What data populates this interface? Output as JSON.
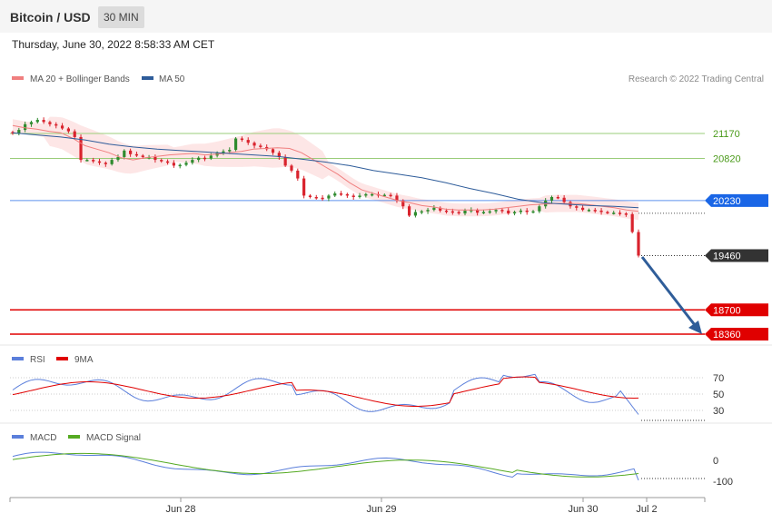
{
  "header": {
    "title": "Bitcoin / USD",
    "timeframe": "30 MIN"
  },
  "datetime": "Thursday, June 30, 2022 8:58:33 AM CET",
  "legend": {
    "ma20": "MA 20 + Bollinger Bands",
    "ma50": "MA 50",
    "credit": "Research © 2022 Trading Central",
    "rsi": "RSI",
    "rsi_ma": "9MA",
    "macd": "MACD",
    "macd_signal": "MACD Signal"
  },
  "colors": {
    "up": "#2e8b2e",
    "down": "#d9232d",
    "bb_fill": "#fde3e3",
    "ma20": "#f07f7f",
    "ma50": "#2e5c9a",
    "resistance": "#9acd7a",
    "pivot": "#1a66e6",
    "support": "#e00000",
    "arrow": "#2f5d99",
    "rsi": "#5b7fdb",
    "macd_signal": "#55aa22"
  },
  "chart_data": [
    {
      "type": "candlestick",
      "title": "Bitcoin / USD",
      "timeframe": "30 MIN",
      "x_ticks": [
        "Jun 28",
        "Jun 29",
        "Jun 30",
        "Jul 2"
      ],
      "ylim": [
        18320,
        21500
      ],
      "levels": [
        {
          "value": 21170,
          "label": "21170",
          "kind": "resistance"
        },
        {
          "value": 20820,
          "label": "20820",
          "kind": "resistance"
        },
        {
          "value": 20230,
          "label": "20230",
          "kind": "pivot"
        },
        {
          "value": 19460,
          "label": "19460",
          "kind": "last"
        },
        {
          "value": 18700,
          "label": "18700",
          "kind": "support"
        },
        {
          "value": 18360,
          "label": "18360",
          "kind": "support"
        }
      ],
      "close": [
        21170,
        21220,
        21300,
        21330,
        21360,
        21330,
        21300,
        21280,
        21240,
        21200,
        21120,
        20800,
        20800,
        20780,
        20760,
        20740,
        20800,
        20840,
        20930,
        20880,
        20860,
        20840,
        20840,
        20800,
        20780,
        20760,
        20720,
        20730,
        20760,
        20800,
        20830,
        20820,
        20860,
        20900,
        20920,
        20940,
        21100,
        21080,
        21040,
        21000,
        20980,
        20950,
        20900,
        20840,
        20720,
        20650,
        20540,
        20300,
        20280,
        20270,
        20260,
        20300,
        20330,
        20320,
        20300,
        20280,
        20300,
        20320,
        20320,
        20310,
        20310,
        20300,
        20230,
        20150,
        20020,
        20070,
        20080,
        20100,
        20130,
        20090,
        20080,
        20070,
        20050,
        20090,
        20100,
        20060,
        20070,
        20080,
        20100,
        20090,
        20050,
        20070,
        20090,
        20070,
        20080,
        20150,
        20230,
        20280,
        20270,
        20210,
        20150,
        20130,
        20100,
        20100,
        20090,
        20070,
        20060,
        20060,
        20050,
        20040,
        19790,
        19460
      ],
      "ma20": [
        21280,
        21250,
        21230,
        21200,
        21180,
        21100,
        21000,
        20950,
        20900,
        20830,
        20800,
        20830,
        20850,
        20870,
        20880,
        20890,
        20870,
        20880,
        20900,
        20920,
        20950,
        20960,
        20970,
        20960,
        20900,
        20800,
        20700,
        20600,
        20480,
        20380,
        20330,
        20280,
        20230,
        20200,
        20160,
        20140,
        20110,
        20100,
        20100,
        20100,
        20110,
        20130,
        20150,
        20170,
        20180,
        20190,
        20190,
        20190,
        20170,
        20150,
        20130,
        20100,
        20080
      ],
      "ma50": [
        21180,
        21150,
        21120,
        21080,
        21020,
        20980,
        20950,
        20930,
        20910,
        20890,
        20870,
        20850,
        20810,
        20770,
        20720,
        20650,
        20600,
        20550,
        20480,
        20400,
        20330,
        20250,
        20200,
        20180,
        20160,
        20150,
        20130
      ],
      "annotation": "arrow from 19460 toward 18360"
    },
    {
      "type": "line",
      "name": "RSI",
      "y_ticks": [
        70,
        50,
        30
      ],
      "series": [
        {
          "name": "RSI"
        },
        {
          "name": "9MA"
        }
      ]
    },
    {
      "type": "line",
      "name": "MACD",
      "y_ticks": [
        0,
        -100
      ],
      "series": [
        {
          "name": "MACD"
        },
        {
          "name": "MACD Signal"
        }
      ]
    }
  ]
}
